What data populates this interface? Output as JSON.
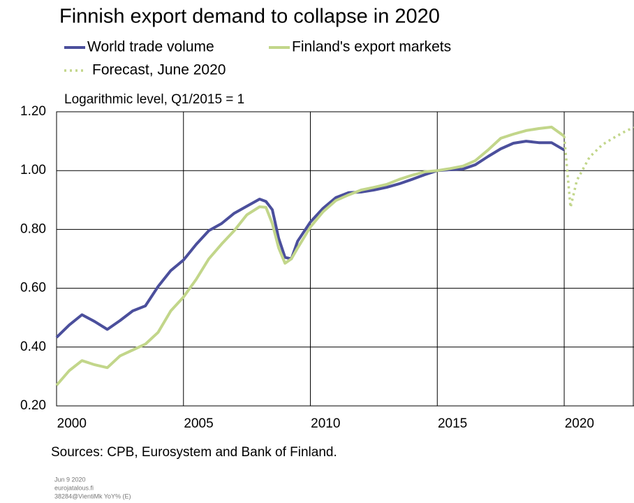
{
  "chart_data": {
    "type": "line",
    "title": "Finnish export demand to collapse in 2020",
    "subtitle": "Logarithmic level, Q1/2015 = 1",
    "source": "Sources: CPB, Eurosystem and Bank of Finland.",
    "footer": [
      "Jun 9 2020",
      "eurojatalous.fi",
      "38284@VientiMk YoY% (E)"
    ],
    "xlim": [
      2000,
      2022.75
    ],
    "xticks": [
      {
        "value": 2000,
        "label": "2000"
      },
      {
        "value": 2005,
        "label": "2005"
      },
      {
        "value": 2010,
        "label": "2010"
      },
      {
        "value": 2015,
        "label": "2015"
      },
      {
        "value": 2020,
        "label": "2020"
      }
    ],
    "ylim": [
      0.2,
      1.2
    ],
    "yticks": [
      {
        "value": 0.2,
        "label": "0.20"
      },
      {
        "value": 0.4,
        "label": "0.40"
      },
      {
        "value": 0.6,
        "label": "0.60"
      },
      {
        "value": 0.8,
        "label": "0.80"
      },
      {
        "value": 1.0,
        "label": "1.00"
      },
      {
        "value": 1.2,
        "label": "1.20"
      }
    ],
    "grid": true,
    "series": [
      {
        "name": "World trade volume",
        "color": "#4b4f9c",
        "dash": false,
        "x": [
          2000,
          2000.5,
          2001,
          2001.5,
          2002,
          2002.5,
          2003,
          2003.5,
          2004,
          2004.5,
          2005,
          2005.5,
          2006,
          2006.5,
          2007,
          2007.5,
          2008,
          2008.25,
          2008.5,
          2008.75,
          2009,
          2009.25,
          2009.5,
          2010,
          2010.5,
          2011,
          2011.5,
          2012,
          2012.5,
          2013,
          2013.5,
          2014,
          2014.5,
          2015,
          2015.5,
          2016,
          2016.5,
          2017,
          2017.5,
          2018,
          2018.5,
          2019,
          2019.5,
          2020
        ],
        "values": [
          0.433,
          0.475,
          0.51,
          0.487,
          0.46,
          0.49,
          0.523,
          0.54,
          0.606,
          0.66,
          0.696,
          0.749,
          0.796,
          0.82,
          0.855,
          0.879,
          0.903,
          0.895,
          0.867,
          0.77,
          0.705,
          0.7,
          0.76,
          0.825,
          0.872,
          0.908,
          0.925,
          0.927,
          0.934,
          0.943,
          0.955,
          0.97,
          0.986,
          1.0,
          1.003,
          1.005,
          1.02,
          1.048,
          1.074,
          1.093,
          1.1,
          1.095,
          1.095,
          1.07
        ]
      },
      {
        "name": "Finland's export markets",
        "color": "#c2d68a",
        "dash": false,
        "x": [
          2000,
          2000.5,
          2001,
          2001.5,
          2002,
          2002.5,
          2003,
          2003.5,
          2004,
          2004.5,
          2005,
          2005.5,
          2006,
          2006.5,
          2007,
          2007.5,
          2008,
          2008.25,
          2008.5,
          2008.75,
          2009,
          2009.25,
          2009.5,
          2010,
          2010.5,
          2011,
          2011.5,
          2012,
          2012.5,
          2013,
          2013.5,
          2014,
          2014.5,
          2015,
          2015.5,
          2016,
          2016.5,
          2017,
          2017.5,
          2018,
          2018.5,
          2019,
          2019.5,
          2020
        ],
        "values": [
          0.27,
          0.32,
          0.354,
          0.34,
          0.33,
          0.37,
          0.39,
          0.41,
          0.45,
          0.523,
          0.57,
          0.63,
          0.7,
          0.75,
          0.796,
          0.85,
          0.877,
          0.875,
          0.82,
          0.737,
          0.685,
          0.7,
          0.737,
          0.808,
          0.86,
          0.898,
          0.917,
          0.934,
          0.943,
          0.953,
          0.97,
          0.984,
          0.996,
          1.0,
          1.007,
          1.015,
          1.034,
          1.07,
          1.11,
          1.124,
          1.136,
          1.143,
          1.148,
          1.117
        ]
      },
      {
        "name": "Forecast, June 2020",
        "color": "#c2d68a",
        "dash": true,
        "x": [
          2020,
          2020.25,
          2020.5,
          2021,
          2021.5,
          2022,
          2022.5,
          2022.75
        ],
        "values": [
          1.117,
          0.875,
          0.967,
          1.046,
          1.088,
          1.114,
          1.138,
          1.145
        ]
      }
    ]
  }
}
